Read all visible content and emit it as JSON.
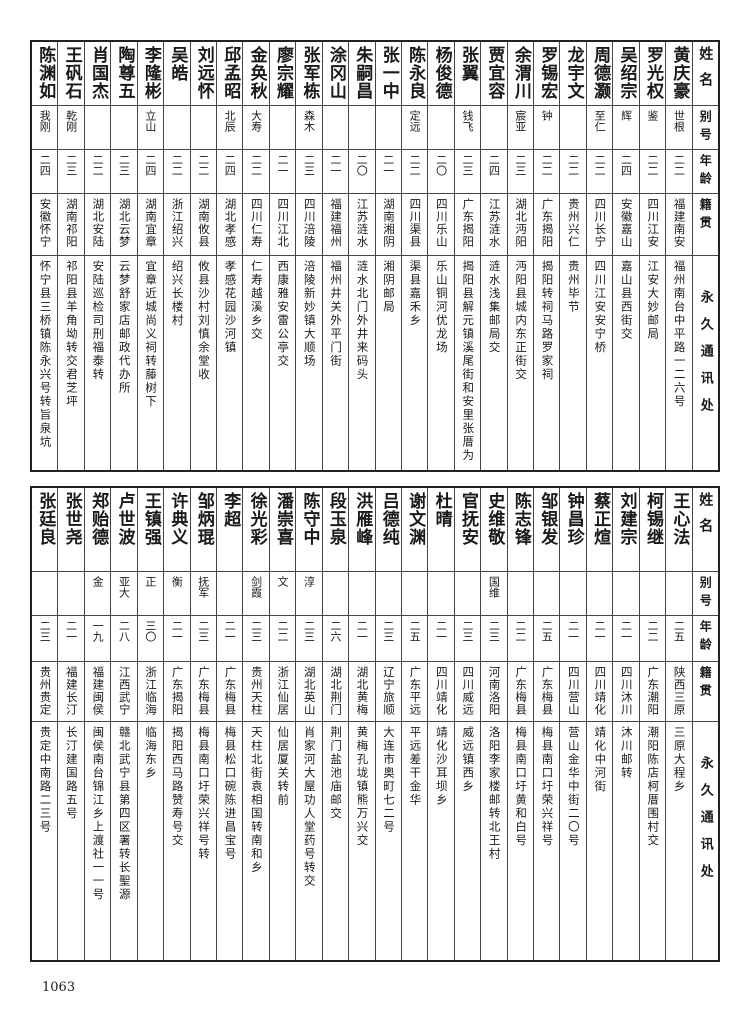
{
  "headers": {
    "name": "姓名",
    "alias": "别号",
    "age": "年龄",
    "hometown": "籍贯",
    "address": "永久通讯处"
  },
  "tables": [
    [
      [
        "黄庆豪",
        "世根",
        "二二",
        "福建南安",
        "福州南台中平路一二六号"
      ],
      [
        "罗光权",
        "鉴",
        "二二",
        "四川江安",
        "江安大妙邮局"
      ],
      [
        "吴绍宗",
        "辉",
        "二四",
        "安徽嘉山",
        "嘉山县西街交"
      ],
      [
        "周德灏",
        "至仁",
        "二二",
        "四川长宁",
        "四川江安安宁桥"
      ],
      [
        "龙宇文",
        "",
        "二二",
        "贵州兴仁",
        "贵州毕节"
      ],
      [
        "罗锡宏",
        "钟",
        "二二",
        "广东揭阳",
        "揭阳转祠马路罗家祠"
      ],
      [
        "余渭川",
        "宸亚",
        "二三",
        "湖北沔阳",
        "沔阳县城内东正街交"
      ],
      [
        "贾宜容",
        "",
        "二四",
        "江苏涟水",
        "涟水浅集邮局交"
      ],
      [
        "张翼",
        "钱飞",
        "二三",
        "广东揭阳",
        "揭阳县解元镇溪尾街和安里张厝为"
      ],
      [
        "杨俊德",
        "",
        "二〇",
        "四川乐山",
        "乐山铜河优龙场"
      ],
      [
        "陈永良",
        "定远",
        "二二",
        "四川渠县",
        "渠县嘉禾乡"
      ],
      [
        "张一中",
        "",
        "二一",
        "湖南湘阴",
        "湘阴邮局"
      ],
      [
        "朱嗣昌",
        "",
        "二〇",
        "江苏涟水",
        "涟水北门外井来码头"
      ],
      [
        "涂冈山",
        "",
        "二一",
        "福建福州",
        "福州井关外平门街"
      ],
      [
        "张军栋",
        "森木",
        "二三",
        "四川涪陵",
        "涪陵新妙镇大顺场"
      ],
      [
        "廖宗耀",
        "",
        "二一",
        "四川江北",
        "西康雅安雷公亭交"
      ],
      [
        "金奂秋",
        "大寿",
        "二二",
        "四川仁寿",
        "仁寿越溪乡交"
      ],
      [
        "邱孟昭",
        "北辰",
        "二四",
        "湖北孝感",
        "孝感花园沙河镇"
      ],
      [
        "刘远怀",
        "",
        "二二",
        "湖南攸县",
        "攸县沙村刘慎余堂收"
      ],
      [
        "吴皓",
        "",
        "二二",
        "浙江绍兴",
        "绍兴长楼村"
      ],
      [
        "李隆彬",
        "立山",
        "二四",
        "湖南宜章",
        "宜章近城尚义祠转藤树下"
      ],
      [
        "陶尊五",
        "",
        "二三",
        "湖北云梦",
        "云梦舒家店邮政代办所"
      ],
      [
        "肖国杰",
        "",
        "二二",
        "湖北安陆",
        "安陆巡检司刑福泰转"
      ],
      [
        "王矾石",
        "乾刚",
        "二三",
        "湖南祁阳",
        "祁阳县羊角坳转交君芝坪"
      ],
      [
        "陈渊如",
        "我刚",
        "二四",
        "安徽怀宁",
        "怀宁县三桥镇陈永兴号转旨泉坑"
      ]
    ],
    [
      [
        "王心法",
        "",
        "二五",
        "陕西三原",
        "三原大程乡"
      ],
      [
        "柯锡继",
        "",
        "二二",
        "广东潮阳",
        "潮阳陈店柯厝围村交"
      ],
      [
        "刘建宗",
        "",
        "二一",
        "四川沐川",
        "沐川邮转"
      ],
      [
        "蔡正煊",
        "",
        "二一",
        "四川靖化",
        "靖化中河街"
      ],
      [
        "钟昌珍",
        "",
        "二一",
        "四川营山",
        "营山金华中街二〇号"
      ],
      [
        "邹银发",
        "",
        "二五",
        "广东梅县",
        "梅县南口圩荣兴祥号"
      ],
      [
        "陈志锋",
        "",
        "二二",
        "广东梅县",
        "梅县南口圩黄和白号"
      ],
      [
        "史维敬",
        "国维",
        "二三",
        "河南洛阳",
        "洛阳李家楼邮转北王村"
      ],
      [
        "官抚安",
        "",
        "二三",
        "四川威远",
        "威远镇西乡"
      ],
      [
        "杜晴",
        "",
        "二一",
        "四川靖化",
        "靖化沙耳坝乡"
      ],
      [
        "谢文渊",
        "",
        "二五",
        "广东平远",
        "平远差干金华"
      ],
      [
        "吕德纯",
        "",
        "二三",
        "辽宁旅顺",
        "大连市奥町七二号"
      ],
      [
        "洪雁峰",
        "",
        "二一",
        "湖北黄梅",
        "黄梅孔垅镇熊万兴交"
      ],
      [
        "段玉泉",
        "",
        "二六",
        "湖北荆门",
        "荆门盐池庙邮交"
      ],
      [
        "陈守中",
        "淳",
        "二三",
        "湖北英山",
        "肖家河大屋功人堂药号转交"
      ],
      [
        "潘崇喜",
        "文",
        "二二",
        "浙江仙居",
        "仙居厦关转前"
      ],
      [
        "徐光彩",
        "剑霞",
        "二三",
        "贵州天柱",
        "天柱北街袁相国转南和乡"
      ],
      [
        "李超",
        "",
        "二一",
        "广东梅县",
        "梅县松口碗陈进昌宝号"
      ],
      [
        "邹炳琨",
        "抚军",
        "二三",
        "广东梅县",
        "梅县南口圩荣兴祥号转"
      ],
      [
        "许典义",
        "衡",
        "二一",
        "广东揭阳",
        "揭阳西马路赞寿号交"
      ],
      [
        "王镇强",
        "正",
        "三〇",
        "浙江临海",
        "临海东乡"
      ],
      [
        "卢世波",
        "亚大",
        "二八",
        "江西武宁",
        "赣北武宁县第四区署转长聖源"
      ],
      [
        "郑贻德",
        "金",
        "一九",
        "福建闽侯",
        "闽侯南台锦江乡上渡社一一号"
      ],
      [
        "张世尧",
        "",
        "二一",
        "福建长汀",
        "长汀建国路五号"
      ],
      [
        "张廷良",
        "",
        "二三",
        "贵州贵定",
        "贵定中南路二三号"
      ]
    ]
  ],
  "page_number": "1063"
}
